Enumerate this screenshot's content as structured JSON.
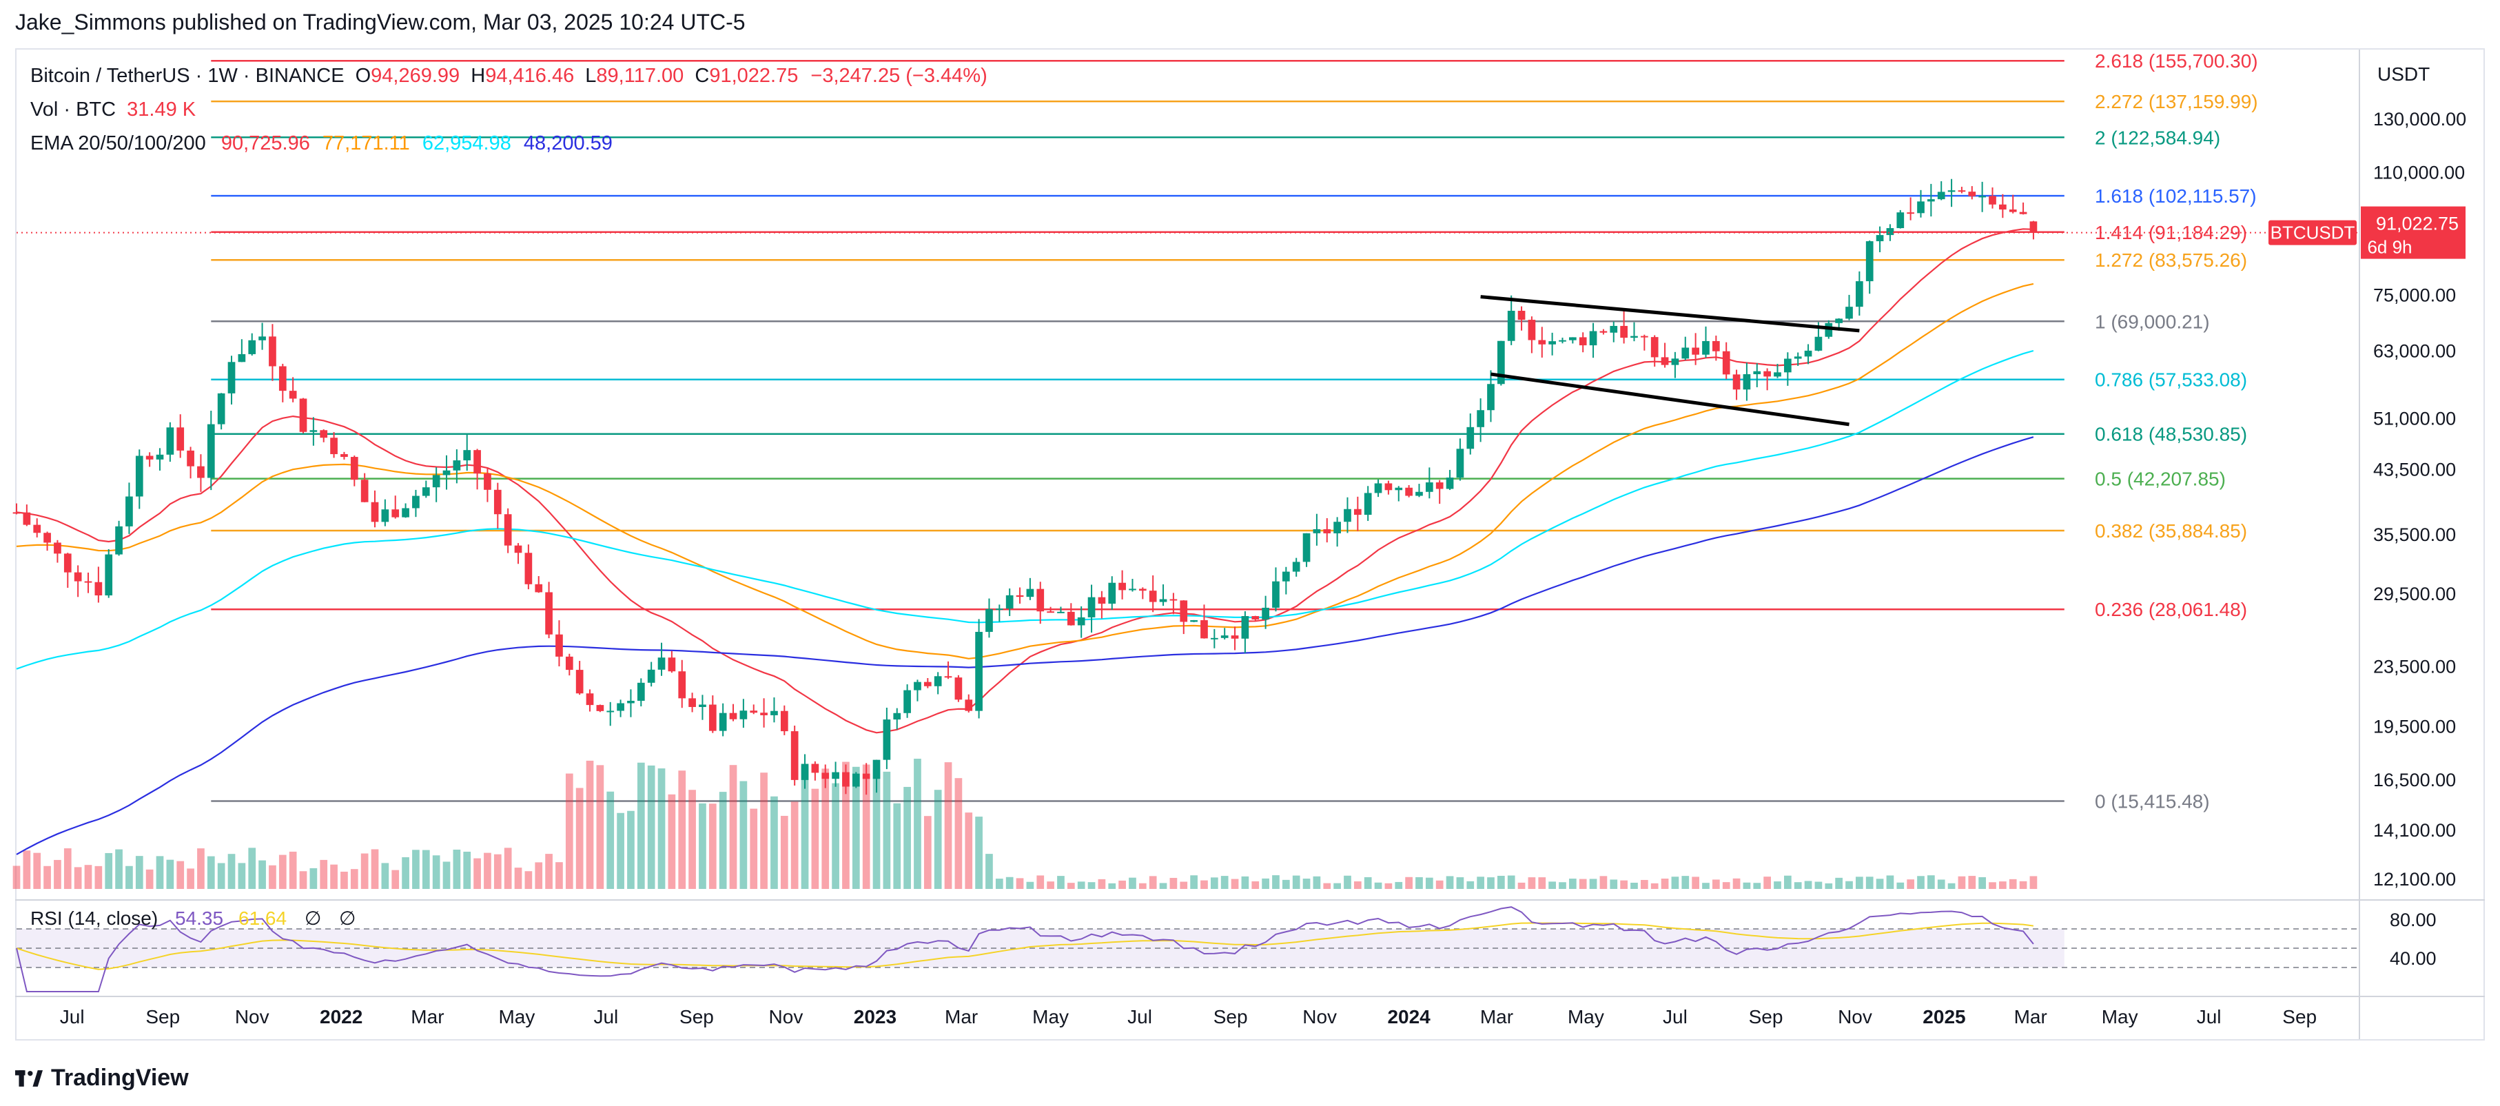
{
  "publisher": "Jake_Simmons published on TradingView.com, Mar 03, 2025 10:24 UTC-5",
  "footer_brand": "TradingView",
  "legend": {
    "symbol": "Bitcoin / TetherUS · 1W · BINANCE",
    "open_label": "O",
    "open": "94,269.99",
    "high_label": "H",
    "high": "94,416.46",
    "low_label": "L",
    "low": "89,117.00",
    "close_label": "C",
    "close": "91,022.75",
    "change": "−3,247.25 (−3.44%)",
    "vol_label": "Vol · BTC",
    "vol": "31.49 K",
    "ema_label": "EMA 20/50/100/200",
    "ema20": "90,725.96",
    "ema50": "77,171.11",
    "ema100": "62,954.98",
    "ema200": "48,200.59",
    "ema_colors": [
      "#f23645",
      "#ff9800",
      "#00e5ff",
      "#2a2ee0"
    ]
  },
  "currency": "USDT",
  "price_tag": {
    "symbol": "BTCUSDT",
    "price": "91,022.75",
    "countdown": "6d 9h"
  },
  "rsi_label": "RSI (14, close)",
  "rsi_value": "54.35",
  "rsi_ma_value": "61.64",
  "chart_data": {
    "type": "candlestick",
    "y_scale": "log",
    "y_ticks": [
      130000,
      110000,
      75000,
      63000,
      51000,
      43500,
      35500,
      29500,
      23500,
      19500,
      16500,
      14100,
      12100
    ],
    "y_tick_labels": [
      "130,000.00",
      "110,000.00",
      "75,000.00",
      "63,000.00",
      "51,000.00",
      "43,500.00",
      "35,500.00",
      "29,500.00",
      "23,500.00",
      "19,500.00",
      "16,500.00",
      "14,100.00",
      "12,100.00"
    ],
    "x_ticks": [
      "Jul",
      "Sep",
      "Nov",
      "2022",
      "Mar",
      "May",
      "Jul",
      "Sep",
      "Nov",
      "2023",
      "Mar",
      "May",
      "Jul",
      "Sep",
      "Nov",
      "2024",
      "Mar",
      "May",
      "Jul",
      "Sep",
      "Nov",
      "2025",
      "Mar",
      "May",
      "Jul",
      "Sep"
    ],
    "x_tick_dates": [
      "2021-07-01",
      "2021-09-01",
      "2021-11-01",
      "2022-01-01",
      "2022-03-01",
      "2022-05-01",
      "2022-07-01",
      "2022-09-01",
      "2022-11-01",
      "2023-01-01",
      "2023-03-01",
      "2023-05-01",
      "2023-07-01",
      "2023-09-01",
      "2023-11-01",
      "2024-01-01",
      "2024-03-01",
      "2024-05-01",
      "2024-07-01",
      "2024-09-01",
      "2024-11-01",
      "2025-01-01",
      "2025-03-01",
      "2025-05-01",
      "2025-07-01",
      "2025-09-01"
    ],
    "x_range": [
      "2021-05-24",
      "2025-10-10"
    ],
    "fib_levels": [
      {
        "label": "2.618 (155,700.30)",
        "value": 155700.3,
        "color": "#f23645"
      },
      {
        "label": "2.272 (137,159.99)",
        "value": 137159.99,
        "color": "#f7a21b"
      },
      {
        "label": "2 (122,584.94)",
        "value": 122584.94,
        "color": "#089981"
      },
      {
        "label": "1.618 (102,115.57)",
        "value": 102115.57,
        "color": "#2962ff"
      },
      {
        "label": "1.414 (91,184.29)",
        "value": 91184.29,
        "color": "#f23645"
      },
      {
        "label": "1.272 (83,575.26)",
        "value": 83575.26,
        "color": "#f7a21b"
      },
      {
        "label": "1 (69,000.21)",
        "value": 69000.21,
        "color": "#787b86"
      },
      {
        "label": "0.786 (57,533.08)",
        "value": 57533.08,
        "color": "#00bcd4"
      },
      {
        "label": "0.618 (48,530.85)",
        "value": 48530.85,
        "color": "#089981"
      },
      {
        "label": "0.5 (42,207.85)",
        "value": 42207.85,
        "color": "#4caf50"
      },
      {
        "label": "0.382 (35,884.85)",
        "value": 35884.85,
        "color": "#f7a21b"
      },
      {
        "label": "0.236 (28,061.48)",
        "value": 28061.48,
        "color": "#f23645"
      },
      {
        "label": "0 (15,415.48)",
        "value": 15415.48,
        "color": "#787b86"
      }
    ],
    "anchors": [
      [
        "2021-05-24",
        38000
      ],
      [
        "2021-06-21",
        33000
      ],
      [
        "2021-07-19",
        30000
      ],
      [
        "2021-08-16",
        45000
      ],
      [
        "2021-09-06",
        48000
      ],
      [
        "2021-09-27",
        43000
      ],
      [
        "2021-10-18",
        62000
      ],
      [
        "2021-11-08",
        66000
      ],
      [
        "2021-12-06",
        50000
      ],
      [
        "2021-12-27",
        47000
      ],
      [
        "2022-01-24",
        37000
      ],
      [
        "2022-02-28",
        41000
      ],
      [
        "2022-03-28",
        46000
      ],
      [
        "2022-05-09",
        31000
      ],
      [
        "2022-06-13",
        21000
      ],
      [
        "2022-07-04",
        20500
      ],
      [
        "2022-08-08",
        23500
      ],
      [
        "2022-09-12",
        19500
      ],
      [
        "2022-10-24",
        20500
      ],
      [
        "2022-11-07",
        17000
      ],
      [
        "2022-12-26",
        16600
      ],
      [
        "2023-01-16",
        21000
      ],
      [
        "2023-02-13",
        23500
      ],
      [
        "2023-03-06",
        21000
      ],
      [
        "2023-03-13",
        26500
      ],
      [
        "2023-04-10",
        30000
      ],
      [
        "2023-05-15",
        26800
      ],
      [
        "2023-06-19",
        30500
      ],
      [
        "2023-07-17",
        29500
      ],
      [
        "2023-08-14",
        26000
      ],
      [
        "2023-09-18",
        26800
      ],
      [
        "2023-10-23",
        34500
      ],
      [
        "2023-11-20",
        37500
      ],
      [
        "2023-12-11",
        42000
      ],
      [
        "2024-01-22",
        40500
      ],
      [
        "2024-02-19",
        52000
      ],
      [
        "2024-03-11",
        69000
      ],
      [
        "2024-04-15",
        64000
      ],
      [
        "2024-05-20",
        68500
      ],
      [
        "2024-06-24",
        60500
      ],
      [
        "2024-07-29",
        65000
      ],
      [
        "2024-08-05",
        57000
      ],
      [
        "2024-09-09",
        58000
      ],
      [
        "2024-09-30",
        63000
      ],
      [
        "2024-10-28",
        70000
      ],
      [
        "2024-11-11",
        90000
      ],
      [
        "2024-12-16",
        100500
      ],
      [
        "2025-01-20",
        104000
      ],
      [
        "2025-02-10",
        98000
      ],
      [
        "2025-02-24",
        94270
      ],
      [
        "2025-03-03",
        91022.75
      ]
    ],
    "volume_label": "Vol · BTC",
    "ema_series": [
      "EMA 20",
      "EMA 50",
      "EMA 100",
      "EMA 200"
    ],
    "trendlines": [
      {
        "from": [
          "2024-02-19",
          74500
        ],
        "to": [
          "2024-11-04",
          67000
        ]
      },
      {
        "from": [
          "2024-02-26",
          58500
        ],
        "to": [
          "2024-10-28",
          50000
        ]
      }
    ],
    "rsi": {
      "ticks": [
        80,
        40
      ],
      "tick_labels": [
        "80.00",
        "40.00"
      ],
      "bands": [
        70,
        50,
        30
      ],
      "last": 54.35,
      "ma_last": 61.64
    }
  }
}
